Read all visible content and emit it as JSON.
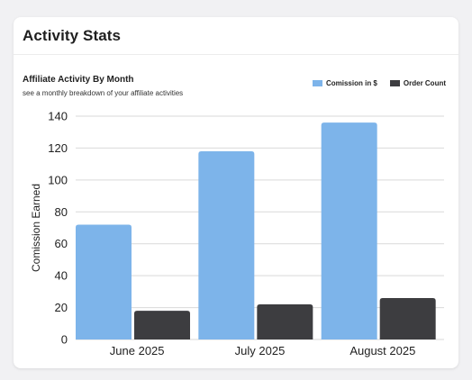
{
  "card": {
    "title": "Activity Stats"
  },
  "chart_data": {
    "type": "bar",
    "title": "Affiliate Activity By Month",
    "subtitle": "see a monthly breakdown of your affiliate activities",
    "ylabel": "Comission Earned",
    "xlabel": "",
    "categories": [
      "June 2025",
      "July 2025",
      "August 2025"
    ],
    "series": [
      {
        "name": "Comission in $",
        "color": "#7db4ea",
        "values": [
          72,
          118,
          136
        ]
      },
      {
        "name": "Order Count",
        "color": "#3d3d40",
        "values": [
          18,
          22,
          26
        ]
      }
    ],
    "ylim": [
      0,
      140
    ],
    "yticks": [
      0,
      20,
      40,
      60,
      80,
      100,
      120,
      140
    ],
    "grid": true,
    "legend_position": "top-right"
  }
}
